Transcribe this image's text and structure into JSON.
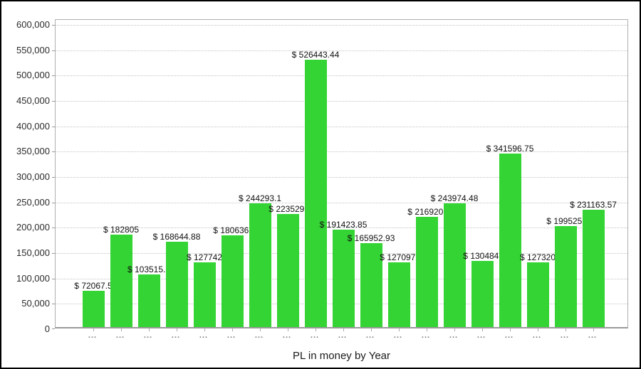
{
  "chart_data": {
    "type": "bar",
    "title": "",
    "xlabel": "PL in money by Year",
    "ylabel": "",
    "ylim": [
      0,
      600000
    ],
    "ytick_step": 50000,
    "grid": "horizontal-dotted",
    "legend": "none",
    "bar_color": "#33d433",
    "ytick_labels": [
      "0",
      "50,000",
      "100,000",
      "150,000",
      "200,000",
      "250,000",
      "300,000",
      "350,000",
      "400,000",
      "450,000",
      "500,000",
      "550,000",
      "600,000"
    ],
    "ytick_values": [
      0,
      50000,
      100000,
      150000,
      200000,
      250000,
      300000,
      350000,
      400000,
      450000,
      500000,
      550000,
      600000
    ],
    "categories": [
      "...",
      "...",
      "...",
      "...",
      "...",
      "...",
      "...",
      "...",
      "...",
      "...",
      "...",
      "...",
      "...",
      "...",
      "...",
      "...",
      "...",
      "...",
      "..."
    ],
    "values": [
      72067.5,
      182805,
      103515.5,
      168644.88,
      127742,
      180636,
      244293.1,
      223529,
      526443.44,
      191423.85,
      165952.93,
      127097,
      216920,
      243974.48,
      130484,
      341596.75,
      127320,
      199525,
      231163.57
    ],
    "bar_labels": [
      "$ 72067.5",
      "$ 182805",
      "$ 103515.5",
      "$ 168644.88",
      "$ 127742",
      "$ 180636.",
      "$ 244293.1",
      "$ 223529.",
      "$ 526443.44",
      "$ 191423.85",
      "$ 165952.93",
      "$ 127097.",
      "$ 216920.",
      "$ 243974.48",
      "$ 130484.",
      "$ 341596.75",
      "$ 127320",
      "$ 199525.",
      "$ 231163.57"
    ]
  },
  "colors": {
    "bar": "#33d433",
    "gridline": "#c4c4c4",
    "plot_border": "#b0b0b0",
    "axis_line": "#9a9a9a",
    "ylabel_text": "#2b2b2b",
    "xlabel_text": "#7a7a7a",
    "value_label_text": "#111111",
    "background": "#ffffff",
    "outer_border": "#000000"
  }
}
